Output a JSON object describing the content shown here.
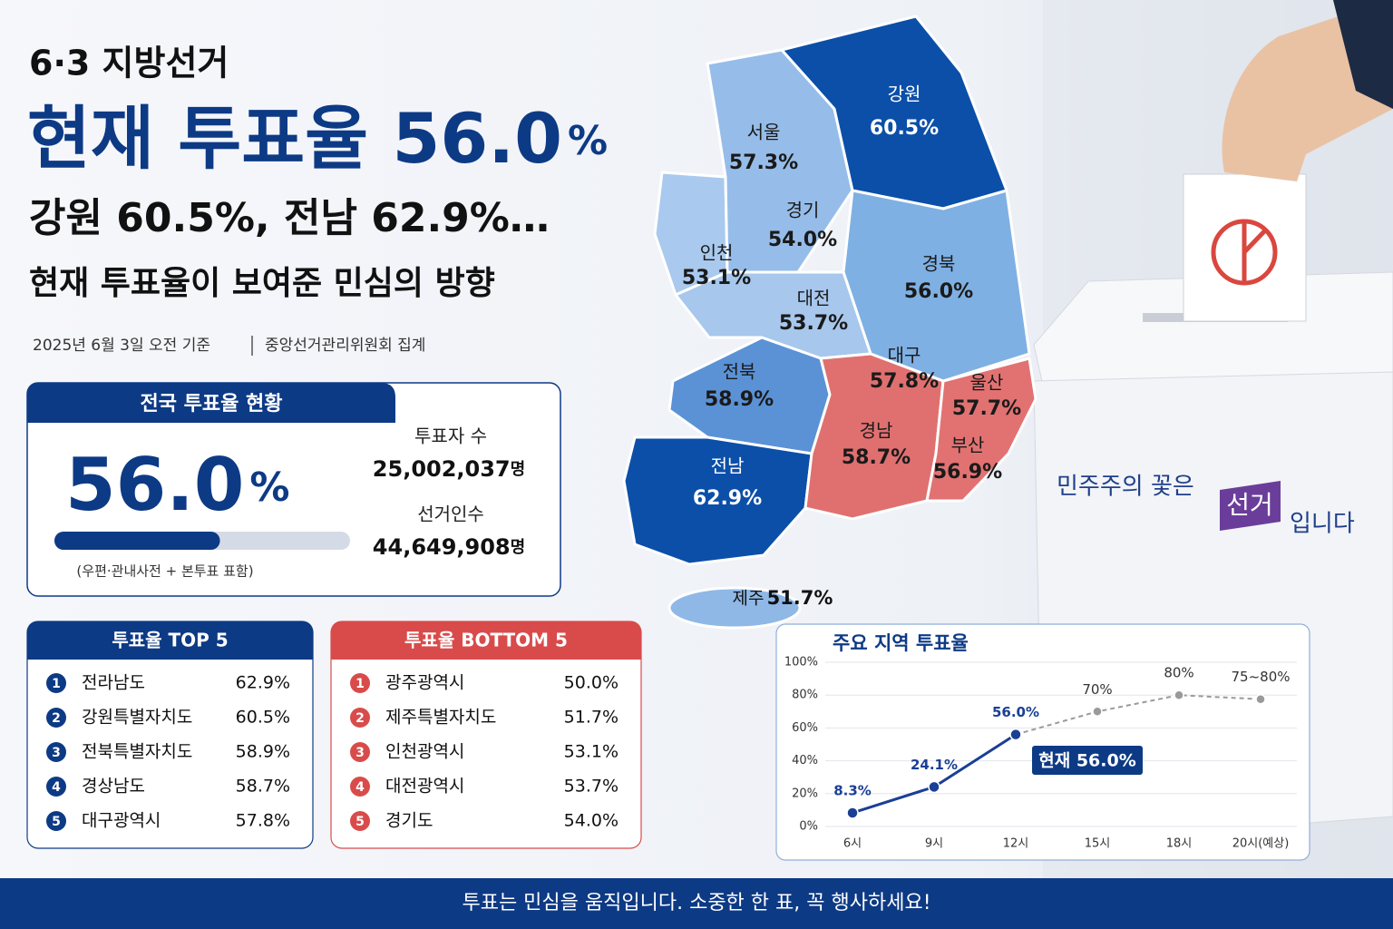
{
  "header": {
    "kicker": "6·3 지방선거",
    "headline": [
      "현재 투표율 56.0",
      "%"
    ],
    "subheadline": "강원 60.5%, 전남 62.9%…",
    "tagline": "현재 투표율이 보여준 민심의 방향",
    "source": [
      "2025년 6월 3일 오전 기준",
      "중앙선거관리위원회 집계"
    ]
  },
  "national": {
    "title": "전국 투표율 현황",
    "rate": {
      "value": 56.0,
      "label": "56.0"
    },
    "rate_unit": "%",
    "xlim": [
      0,
      100
    ],
    "voters": {
      "label": "투표자 수",
      "value": "25,002,037",
      "unit": "명"
    },
    "electorate": {
      "label": "선거인수",
      "value": "44,649,908",
      "unit": "명"
    },
    "note": "(우편·관내사전 + 본투표 표함)"
  },
  "map": {
    "regions": [
      {
        "name": "강원",
        "rate": "60.5%"
      },
      {
        "name": "서울",
        "rate": "57.3%"
      },
      {
        "name": "경기",
        "rate": "54.0%"
      },
      {
        "name": "인천",
        "rate": "53.1%"
      },
      {
        "name": "경북",
        "rate": "56.0%"
      },
      {
        "name": "대전",
        "rate": "53.7%"
      },
      {
        "name": "대구",
        "rate": "57.8%"
      },
      {
        "name": "울산",
        "rate": "57.7%"
      },
      {
        "name": "전북",
        "rate": "58.9%"
      },
      {
        "name": "경남",
        "rate": "58.7%"
      },
      {
        "name": "부산",
        "rate": "56.9%"
      },
      {
        "name": "전남",
        "rate": "62.9%"
      },
      {
        "name": "제주",
        "rate": "51.7%"
      }
    ]
  },
  "top5": {
    "title": "투표율 TOP 5",
    "items": [
      {
        "rank": 1,
        "name": "전라남도",
        "rate": "62.9%"
      },
      {
        "rank": 2,
        "name": "강원특별자치도",
        "rate": "60.5%"
      },
      {
        "rank": 3,
        "name": "전북특별자치도",
        "rate": "58.9%"
      },
      {
        "rank": 4,
        "name": "경상남도",
        "rate": "58.7%"
      },
      {
        "rank": 5,
        "name": "대구광역시",
        "rate": "57.8%"
      }
    ]
  },
  "bottom5": {
    "title": "투표율 BOTTOM 5",
    "items": [
      {
        "rank": 1,
        "name": "광주광역시",
        "rate": "50.0%"
      },
      {
        "rank": 2,
        "name": "제주특별자치도",
        "rate": "51.7%"
      },
      {
        "rank": 3,
        "name": "인천광역시",
        "rate": "53.1%"
      },
      {
        "rank": 4,
        "name": "대전광역시",
        "rate": "53.7%"
      },
      {
        "rank": 5,
        "name": "경기도",
        "rate": "54.0%"
      }
    ]
  },
  "chart_data": {
    "type": "line",
    "title": "주요 지역 투표율",
    "categories": [
      "6시",
      "9시",
      "12시",
      "15시",
      "18시",
      "20시(예상)"
    ],
    "series": [
      {
        "name": "현재",
        "color": "#1a3f95",
        "values": [
          8.3,
          24.1,
          56.0,
          null,
          null,
          null
        ],
        "value_labels": [
          "8.3%",
          "24.1%",
          "56.0%",
          null,
          null,
          null
        ]
      },
      {
        "name": "예상",
        "color": "#9a9a9a",
        "values": [
          null,
          null,
          56.0,
          70,
          80,
          77.5
        ],
        "value_labels": [
          null,
          null,
          null,
          "70%",
          "80%",
          "75~80%"
        ]
      }
    ],
    "ylim": [
      0,
      100
    ],
    "yticks": [
      {
        "value": 0,
        "label": "0%"
      },
      {
        "value": 20,
        "label": "20%"
      },
      {
        "value": 40,
        "label": "40%"
      },
      {
        "value": 60,
        "label": "60%"
      },
      {
        "value": 80,
        "label": "80%"
      },
      {
        "value": 100,
        "label": "100%"
      }
    ],
    "grid": true,
    "annotation": "현재 56.0%"
  },
  "slogan": [
    "민주주의 꽃은",
    "선거",
    "입니다"
  ],
  "footer": "투표는 민심을 움직입니다. 소중한 한 표, 꼭 행사하세요!"
}
